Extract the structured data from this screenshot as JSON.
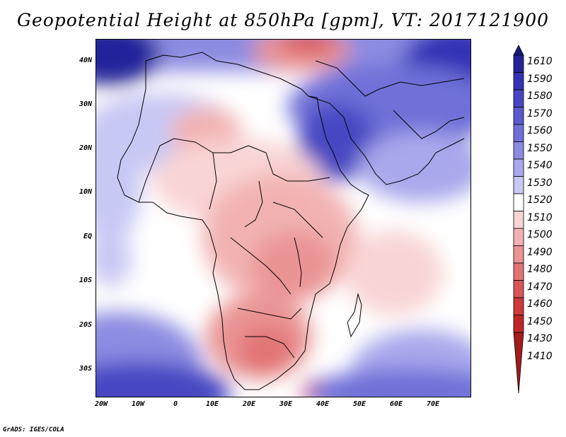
{
  "map": {
    "title": "Geopotential Height at 850hPa [gpm], VT: 2017121900",
    "lat_labels": [
      "40N",
      "30N",
      "20N",
      "10N",
      "EQ",
      "10S",
      "20S",
      "30S"
    ],
    "lon_labels": [
      "20W",
      "10W",
      "0",
      "10E",
      "20E",
      "30E",
      "40E",
      "50E",
      "60E",
      "70E"
    ],
    "extent": {
      "lon_min": -22,
      "lon_max": 80,
      "lat_min": -36,
      "lat_max": 45
    },
    "field_description": "Geopotential height field over Africa, Arabia and South Asia"
  },
  "legend": {
    "levels": [
      "1610",
      "1590",
      "1580",
      "1570",
      "1560",
      "1550",
      "1540",
      "1530",
      "1520",
      "1510",
      "1500",
      "1490",
      "1480",
      "1470",
      "1460",
      "1450",
      "1430",
      "1410"
    ],
    "colors": [
      "#1a1a7a",
      "#23239a",
      "#3333b5",
      "#4646c3",
      "#5a5acf",
      "#7070d8",
      "#8c8ce2",
      "#a8a8ec",
      "#c8c8f4",
      "#ffffff",
      "#f9d4d4",
      "#f2b2b2",
      "#ea9494",
      "#e27474",
      "#d95656",
      "#cf3a3a",
      "#c02626",
      "#a51a1a"
    ]
  },
  "credit": "GrADS: IGES/COLA"
}
